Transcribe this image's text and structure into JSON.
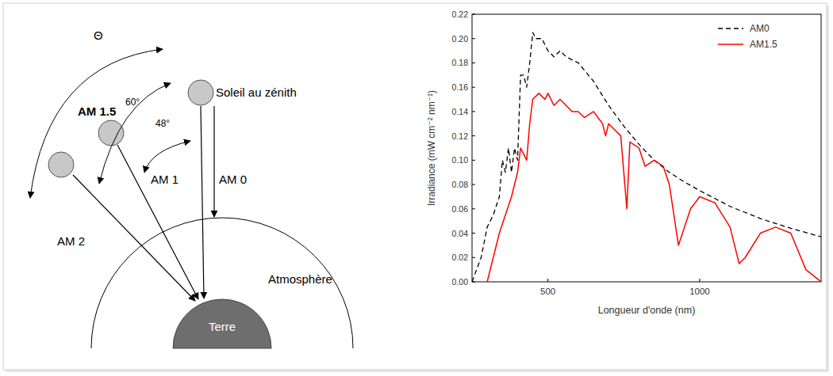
{
  "diagram": {
    "theta": "Θ",
    "sun_label": "Soleil au zénith",
    "angles": [
      "60°",
      "48°"
    ],
    "air_masses": [
      "AM 0",
      "AM 1",
      "AM 1.5",
      "AM 2"
    ],
    "atmosphere": "Atmosphère",
    "earth": "Terre"
  },
  "chart_data": {
    "type": "line",
    "x_label": "Longueur d'onde (nm)",
    "y_label": "Irradiance (mW cm⁻² nm⁻¹)",
    "xlim": [
      250,
      1400
    ],
    "xticks": [
      500,
      1000
    ],
    "ylim": [
      0,
      0.22
    ],
    "yticks": [
      {
        "value": 0,
        "label": "0.00"
      },
      {
        "value": 0.02,
        "label": "0.02"
      },
      {
        "value": 0.04,
        "label": "0.04"
      },
      {
        "value": 0.06,
        "label": "0.06"
      },
      {
        "value": 0.08,
        "label": "0.08"
      },
      {
        "value": 0.1,
        "label": "0.10"
      },
      {
        "value": 0.12,
        "label": "0.12"
      },
      {
        "value": 0.14,
        "label": "0.14"
      },
      {
        "value": 0.16,
        "label": "0.16"
      },
      {
        "value": 0.18,
        "label": "0.18"
      },
      {
        "value": 0.2,
        "label": "0.20"
      },
      {
        "value": 0.22,
        "label": "0.22"
      }
    ],
    "grid": false,
    "legend": "upper-right",
    "series": [
      {
        "name": "AM0",
        "color": "#000000",
        "line_style": "dashed",
        "x": [
          250,
          280,
          300,
          320,
          340,
          350,
          360,
          370,
          380,
          390,
          400,
          410,
          420,
          430,
          440,
          450,
          460,
          480,
          500,
          520,
          540,
          560,
          600,
          650,
          700,
          750,
          800,
          850,
          900,
          950,
          1000,
          1100,
          1200,
          1300,
          1400
        ],
        "values": [
          0.0,
          0.02,
          0.045,
          0.055,
          0.07,
          0.1,
          0.09,
          0.11,
          0.09,
          0.11,
          0.1,
          0.17,
          0.17,
          0.16,
          0.18,
          0.205,
          0.2,
          0.2,
          0.19,
          0.185,
          0.19,
          0.185,
          0.18,
          0.165,
          0.145,
          0.128,
          0.113,
          0.1,
          0.09,
          0.082,
          0.075,
          0.062,
          0.052,
          0.044,
          0.037
        ]
      },
      {
        "name": "AM1.5",
        "color": "#ff0000",
        "line_style": "solid",
        "x": [
          300,
          320,
          340,
          360,
          380,
          400,
          410,
          420,
          430,
          440,
          450,
          470,
          490,
          500,
          520,
          540,
          560,
          580,
          600,
          620,
          650,
          680,
          690,
          700,
          720,
          740,
          760,
          770,
          800,
          820,
          850,
          880,
          900,
          930,
          950,
          970,
          1000,
          1050,
          1100,
          1130,
          1150,
          1200,
          1250,
          1300,
          1350,
          1400
        ],
        "values": [
          0.0,
          0.02,
          0.04,
          0.055,
          0.07,
          0.09,
          0.11,
          0.105,
          0.1,
          0.13,
          0.15,
          0.155,
          0.15,
          0.155,
          0.145,
          0.15,
          0.145,
          0.14,
          0.14,
          0.135,
          0.14,
          0.13,
          0.12,
          0.13,
          0.125,
          0.12,
          0.06,
          0.115,
          0.11,
          0.095,
          0.1,
          0.095,
          0.08,
          0.03,
          0.045,
          0.06,
          0.07,
          0.065,
          0.045,
          0.015,
          0.02,
          0.04,
          0.045,
          0.04,
          0.01,
          0.0
        ]
      }
    ]
  }
}
